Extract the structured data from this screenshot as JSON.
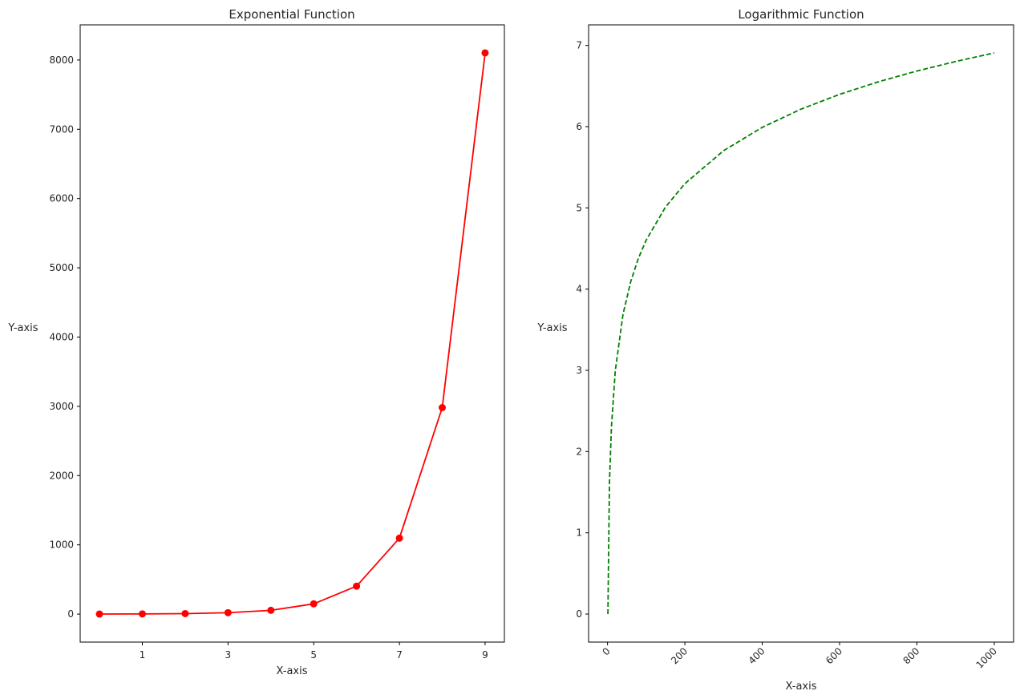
{
  "chart_data": [
    {
      "type": "line",
      "title": "Exponential Function",
      "xlabel": "X-axis",
      "ylabel": "Y-axis",
      "x": [
        0,
        1,
        2,
        3,
        4,
        5,
        6,
        7,
        8,
        9
      ],
      "series": [
        {
          "values": [
            1,
            2.7,
            7.4,
            20.1,
            54.6,
            148.4,
            403.4,
            1096.6,
            2981.0,
            8103.1
          ],
          "color": "#ff0000",
          "marker": "circle",
          "linestyle": "solid"
        }
      ],
      "xticks": [
        1,
        3,
        5,
        7,
        9
      ],
      "yticks": [
        0,
        1000,
        2000,
        3000,
        4000,
        5000,
        6000,
        7000,
        8000
      ],
      "xlim": [
        -0.45,
        9.45
      ],
      "ylim": [
        -404,
        8508
      ],
      "grid": false
    },
    {
      "type": "line",
      "title": "Logarithmic Function",
      "xlabel": "X-axis",
      "ylabel": "Y-axis",
      "x": [
        1,
        5,
        10,
        20,
        40,
        60,
        80,
        100,
        150,
        200,
        300,
        400,
        500,
        600,
        700,
        800,
        900,
        1000
      ],
      "series": [
        {
          "values": [
            0,
            1.609,
            2.303,
            2.996,
            3.689,
            4.094,
            4.382,
            4.605,
            5.011,
            5.298,
            5.704,
            5.991,
            6.215,
            6.397,
            6.551,
            6.685,
            6.802,
            6.908
          ],
          "color": "#008000",
          "marker": "none",
          "linestyle": "dashed"
        }
      ],
      "xticks": [
        0,
        200,
        400,
        600,
        800,
        1000
      ],
      "yticks": [
        0,
        1,
        2,
        3,
        4,
        5,
        6,
        7
      ],
      "xlim": [
        -49,
        1050
      ],
      "ylim": [
        -0.345,
        7.253
      ],
      "xtick_rotation": 45,
      "grid": false
    }
  ]
}
